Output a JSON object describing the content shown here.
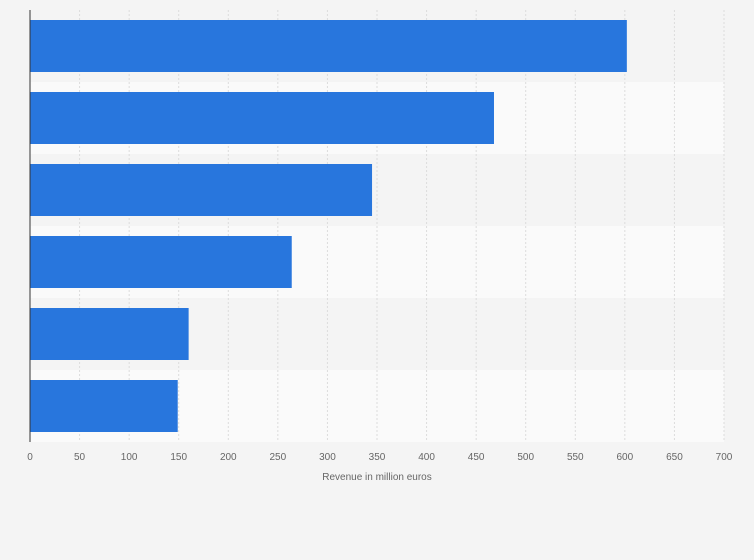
{
  "chart_data": {
    "type": "bar",
    "orientation": "horizontal",
    "categories": [
      "",
      "",
      "",
      "",
      "",
      ""
    ],
    "values": [
      602,
      468,
      345,
      264,
      160,
      149
    ],
    "xlabel": "Revenue in million euros",
    "ylabel": "",
    "xlim": [
      0,
      700
    ],
    "ticks": [
      0,
      50,
      100,
      150,
      200,
      250,
      300,
      350,
      400,
      450,
      500,
      550,
      600,
      650,
      700
    ],
    "grid": true,
    "colors": {
      "bar": "#2876dd",
      "band_even": "#f4f4f4",
      "band_odd": "#fafafa",
      "grid": "#dcdcdc",
      "axis": "#333333",
      "text": "#666666"
    }
  }
}
